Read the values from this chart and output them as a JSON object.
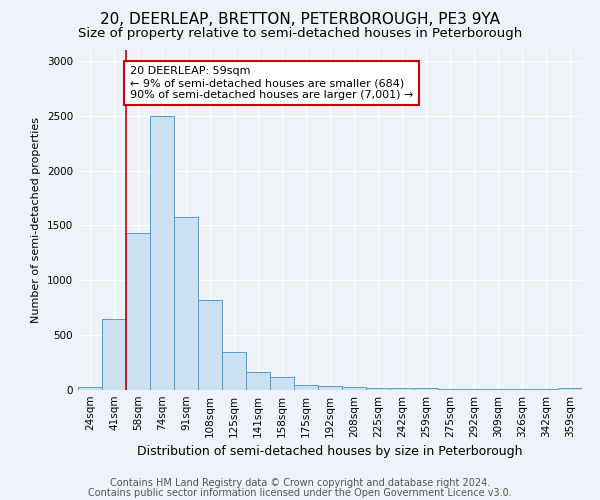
{
  "title1": "20, DEERLEAP, BRETTON, PETERBOROUGH, PE3 9YA",
  "title2": "Size of property relative to semi-detached houses in Peterborough",
  "xlabel": "Distribution of semi-detached houses by size in Peterborough",
  "ylabel": "Number of semi-detached properties",
  "categories": [
    "24sqm",
    "41sqm",
    "58sqm",
    "74sqm",
    "91sqm",
    "108sqm",
    "125sqm",
    "141sqm",
    "158sqm",
    "175sqm",
    "192sqm",
    "208sqm",
    "225sqm",
    "242sqm",
    "259sqm",
    "275sqm",
    "292sqm",
    "309sqm",
    "326sqm",
    "342sqm",
    "359sqm"
  ],
  "values": [
    30,
    650,
    1430,
    2500,
    1580,
    820,
    350,
    160,
    120,
    50,
    40,
    25,
    20,
    18,
    15,
    12,
    10,
    8,
    6,
    5,
    20
  ],
  "bar_color": "#cce0f0",
  "bar_edge_color": "#5b9bd5",
  "bg_color": "#eef2f9",
  "red_line_color": "#cc0000",
  "annotation_text": "20 DEERLEAP: 59sqm\n← 9% of semi-detached houses are smaller (684)\n90% of semi-detached houses are larger (7,001) →",
  "annotation_box_color": "#ffffff",
  "annotation_box_edge": "#cc0000",
  "ylim": [
    0,
    3100
  ],
  "yticks": [
    0,
    500,
    1000,
    1500,
    2000,
    2500,
    3000
  ],
  "footnote1": "Contains HM Land Registry data © Crown copyright and database right 2024.",
  "footnote2": "Contains public sector information licensed under the Open Government Licence v3.0.",
  "title1_fontsize": 11,
  "title2_fontsize": 9.5,
  "xlabel_fontsize": 9,
  "ylabel_fontsize": 8,
  "tick_fontsize": 7.5,
  "annotation_fontsize": 8,
  "footnote_fontsize": 7
}
